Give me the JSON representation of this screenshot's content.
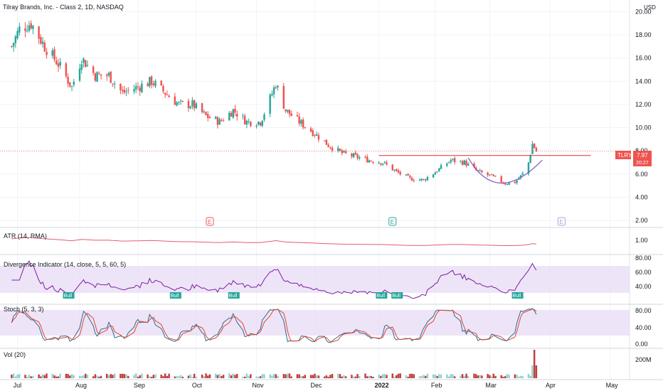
{
  "header": {
    "title": "Tilray Brands, Inc. - Class 2, 1D, NASDAQ"
  },
  "currency": "USD",
  "price": {
    "ticker": "TLRY",
    "last": "7.97",
    "countdown": "20:27"
  },
  "colors": {
    "up": "#26a69a",
    "down": "#ef5350",
    "grid": "#f0f3fa",
    "osc_fill": "#e7d9f4",
    "osc_line": "#7b1fa2",
    "atr_line": "#e55b6b",
    "stoch_k": "#2a6c8f",
    "stoch_d": "#e0442e",
    "cup_line": "#7e57c2",
    "resistance": "#e03030"
  },
  "panes": {
    "atr": {
      "title": "ATR (14, RMA)",
      "ticks": [
        "1.00"
      ]
    },
    "divergence": {
      "title": "Divergence Indicator (14, close, 5, 5, 60, 5)",
      "ticks": [
        "80.00",
        "60.00",
        "40.00"
      ],
      "bull_label": "Bull"
    },
    "stoch": {
      "title": "Stoch (5, 3, 3)",
      "ticks": [
        "80.00",
        "40.00",
        "0.00"
      ]
    },
    "volume": {
      "title": "Vol (20)",
      "ticks": [
        "200M"
      ]
    }
  },
  "earnings_marker": "E",
  "chart_data": {
    "type": "candlestick",
    "title": "Tilray Brands, Inc. - Class 2, 1D, NASDAQ",
    "y_axis_ticks": [
      "20.00",
      "18.00",
      "16.00",
      "14.00",
      "12.00",
      "10.00",
      "8.00",
      "6.00",
      "4.00",
      "2.00"
    ],
    "ylim": [
      1.4,
      21.0
    ],
    "x_axis_labels": [
      "Jul",
      "Aug",
      "Sep",
      "Oct",
      "Nov",
      "Dec",
      "2022",
      "Feb",
      "Mar",
      "Apr",
      "May"
    ],
    "key_close_points": [
      [
        "2021-06-28",
        17.0
      ],
      [
        "2021-07-02",
        18.5
      ],
      [
        "2021-07-08",
        19.0
      ],
      [
        "2021-07-15",
        17.0
      ],
      [
        "2021-07-22",
        15.5
      ],
      [
        "2021-07-29",
        13.5
      ],
      [
        "2021-08-03",
        16.0
      ],
      [
        "2021-08-10",
        14.5
      ],
      [
        "2021-08-17",
        14.5
      ],
      [
        "2021-08-24",
        13.0
      ],
      [
        "2021-09-01",
        13.5
      ],
      [
        "2021-09-08",
        14.0
      ],
      [
        "2021-09-15",
        13.0
      ],
      [
        "2021-09-22",
        12.0
      ],
      [
        "2021-09-29",
        12.0
      ],
      [
        "2021-10-06",
        11.0
      ],
      [
        "2021-10-13",
        10.5
      ],
      [
        "2021-10-20",
        11.5
      ],
      [
        "2021-10-27",
        10.5
      ],
      [
        "2021-11-03",
        10.5
      ],
      [
        "2021-11-08",
        12.5
      ],
      [
        "2021-11-11",
        13.8
      ],
      [
        "2021-11-16",
        11.5
      ],
      [
        "2021-11-23",
        10.5
      ],
      [
        "2021-12-01",
        9.5
      ],
      [
        "2021-12-08",
        8.5
      ],
      [
        "2021-12-15",
        7.8
      ],
      [
        "2021-12-22",
        7.5
      ],
      [
        "2021-12-29",
        7.2
      ],
      [
        "2022-01-05",
        7.0
      ],
      [
        "2022-01-12",
        6.2
      ],
      [
        "2022-01-19",
        5.6
      ],
      [
        "2022-01-26",
        5.5
      ],
      [
        "2022-02-02",
        6.3
      ],
      [
        "2022-02-09",
        7.2
      ],
      [
        "2022-02-16",
        7.0
      ],
      [
        "2022-02-23",
        6.2
      ],
      [
        "2022-03-02",
        5.8
      ],
      [
        "2022-03-09",
        5.2
      ],
      [
        "2022-03-14",
        5.3
      ],
      [
        "2022-03-18",
        6.0
      ],
      [
        "2022-03-21",
        7.0
      ],
      [
        "2022-03-23",
        8.6
      ],
      [
        "2022-03-25",
        7.97
      ]
    ],
    "resistance_level": 7.6,
    "cup_pattern": {
      "from": "2022-02-18",
      "to": "2022-03-28",
      "bottom": 4.5
    },
    "earnings_dates": [
      "2021-10-08",
      "2022-01-10",
      "2022-04-07"
    ],
    "divergence_bull_labels": 6,
    "volume_axis_max": "200M"
  }
}
